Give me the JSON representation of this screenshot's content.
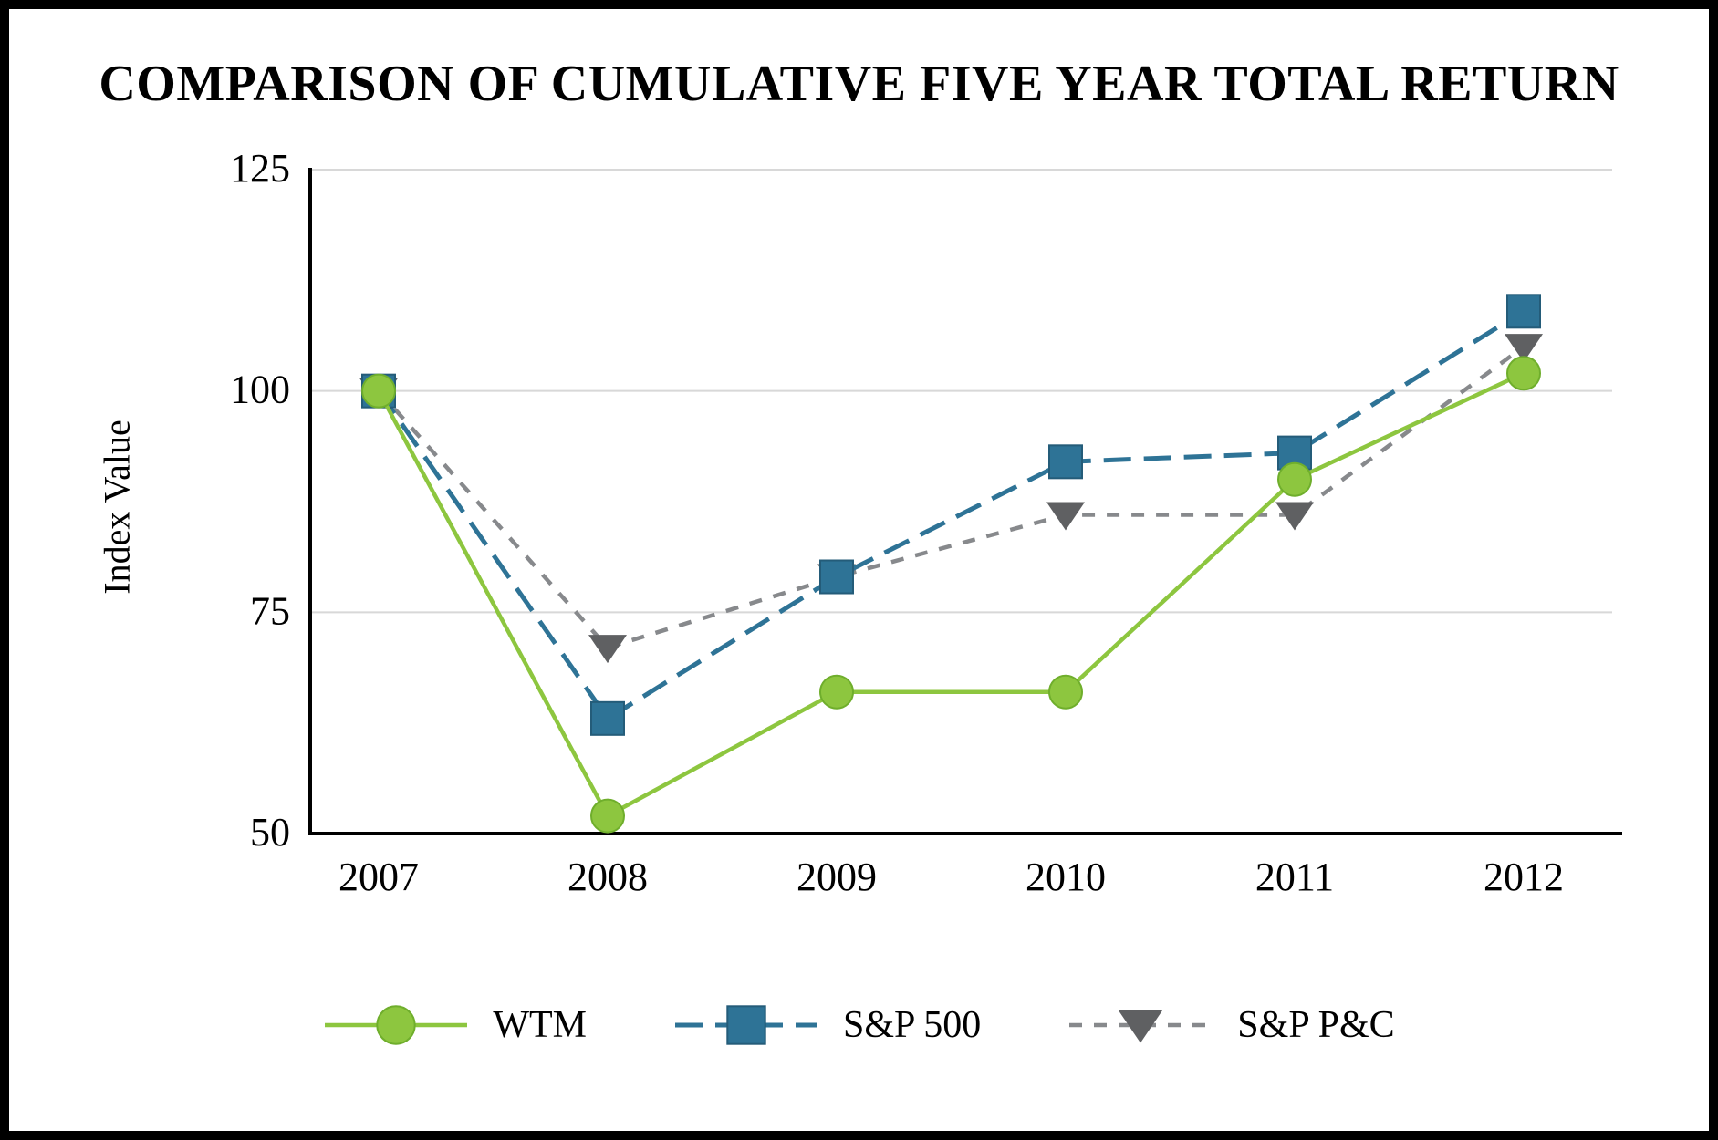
{
  "chart_data": {
    "type": "line",
    "title": "COMPARISON OF CUMULATIVE FIVE YEAR TOTAL RETURN",
    "ylabel": "Index Value",
    "xlabel": "",
    "x": [
      "2007",
      "2008",
      "2009",
      "2010",
      "2011",
      "2012"
    ],
    "ylim": [
      50,
      125
    ],
    "yticks": [
      50,
      75,
      100,
      125
    ],
    "grid": "horizontal-light",
    "grid_color": "#d8d8d8",
    "axis_color": "#000000",
    "legend_position": "bottom",
    "series": [
      {
        "name": "WTM",
        "values": [
          100,
          52,
          66,
          66,
          90,
          102
        ],
        "color": "#8dc63f",
        "marker": "circle",
        "marker_color": "#8dc63f",
        "marker_stroke": "#6fae2c",
        "dash": "",
        "line_width": 4.5
      },
      {
        "name": "S&P 500",
        "values": [
          100,
          63,
          79,
          92,
          93,
          109
        ],
        "color": "#2e7396",
        "marker": "square",
        "marker_color": "#2e7396",
        "marker_stroke": "#245c79",
        "dash": "30 14",
        "line_width": 5
      },
      {
        "name": "S&P P&C",
        "values": [
          100,
          71,
          79,
          86,
          86,
          105
        ],
        "color": "#87898c",
        "marker": "triangle-down",
        "marker_color": "#5f6062",
        "marker_stroke": "none",
        "dash": "14 13",
        "line_width": 4.5
      }
    ]
  }
}
